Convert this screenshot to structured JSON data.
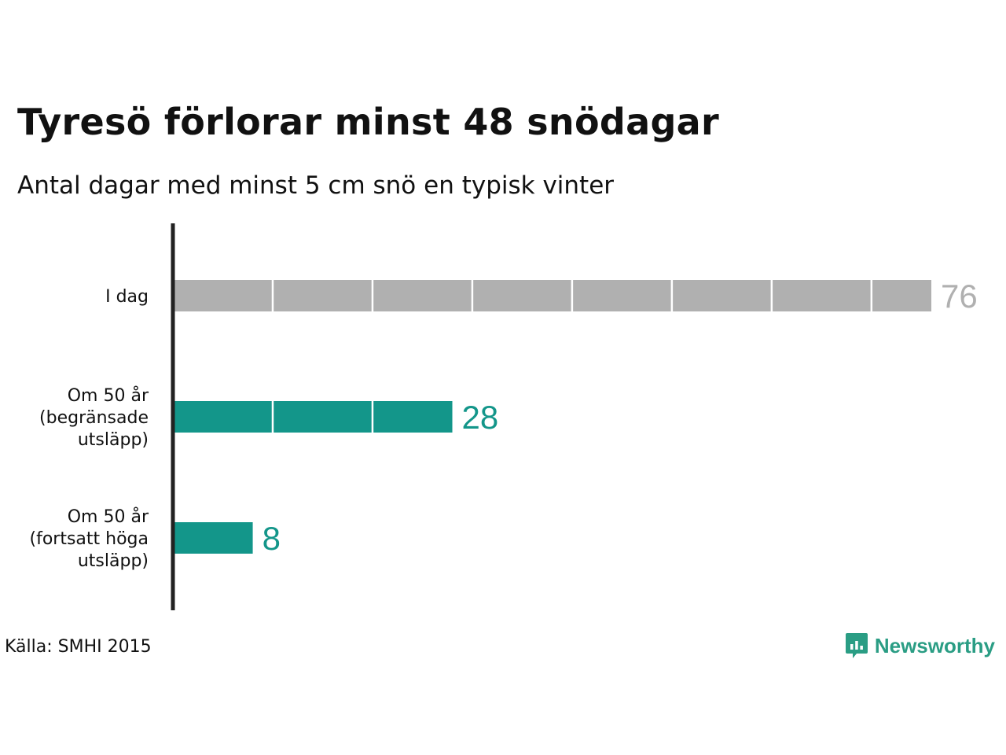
{
  "title": "Tyresö förlorar minst 48 snödagar",
  "subtitle": "Antal dagar med minst 5 cm snö en typisk vinter",
  "source": "Källa: SMHI 2015",
  "brand": {
    "name": "Newsworthy",
    "icon": "newsworthy-logo-icon",
    "color": "#2a9d84"
  },
  "colors": {
    "today": "#b0b0b0",
    "future": "#13968a",
    "axis": "#222222",
    "divider": "#ffffff"
  },
  "chart_data": {
    "type": "bar",
    "orientation": "horizontal",
    "categories": [
      [
        "I dag"
      ],
      [
        "Om 50 år",
        "(begränsade",
        "utsläpp)"
      ],
      [
        "Om 50 år",
        "(fortsatt höga",
        "utsläpp)"
      ]
    ],
    "values": [
      76,
      28,
      8
    ],
    "value_labels": [
      "76",
      "28",
      "8"
    ],
    "bar_colors": [
      "#b0b0b0",
      "#13968a",
      "#13968a"
    ],
    "segment_step": 10,
    "xlim": [
      0,
      76
    ],
    "grid": false,
    "legend": false,
    "xlabel": "",
    "ylabel": ""
  }
}
